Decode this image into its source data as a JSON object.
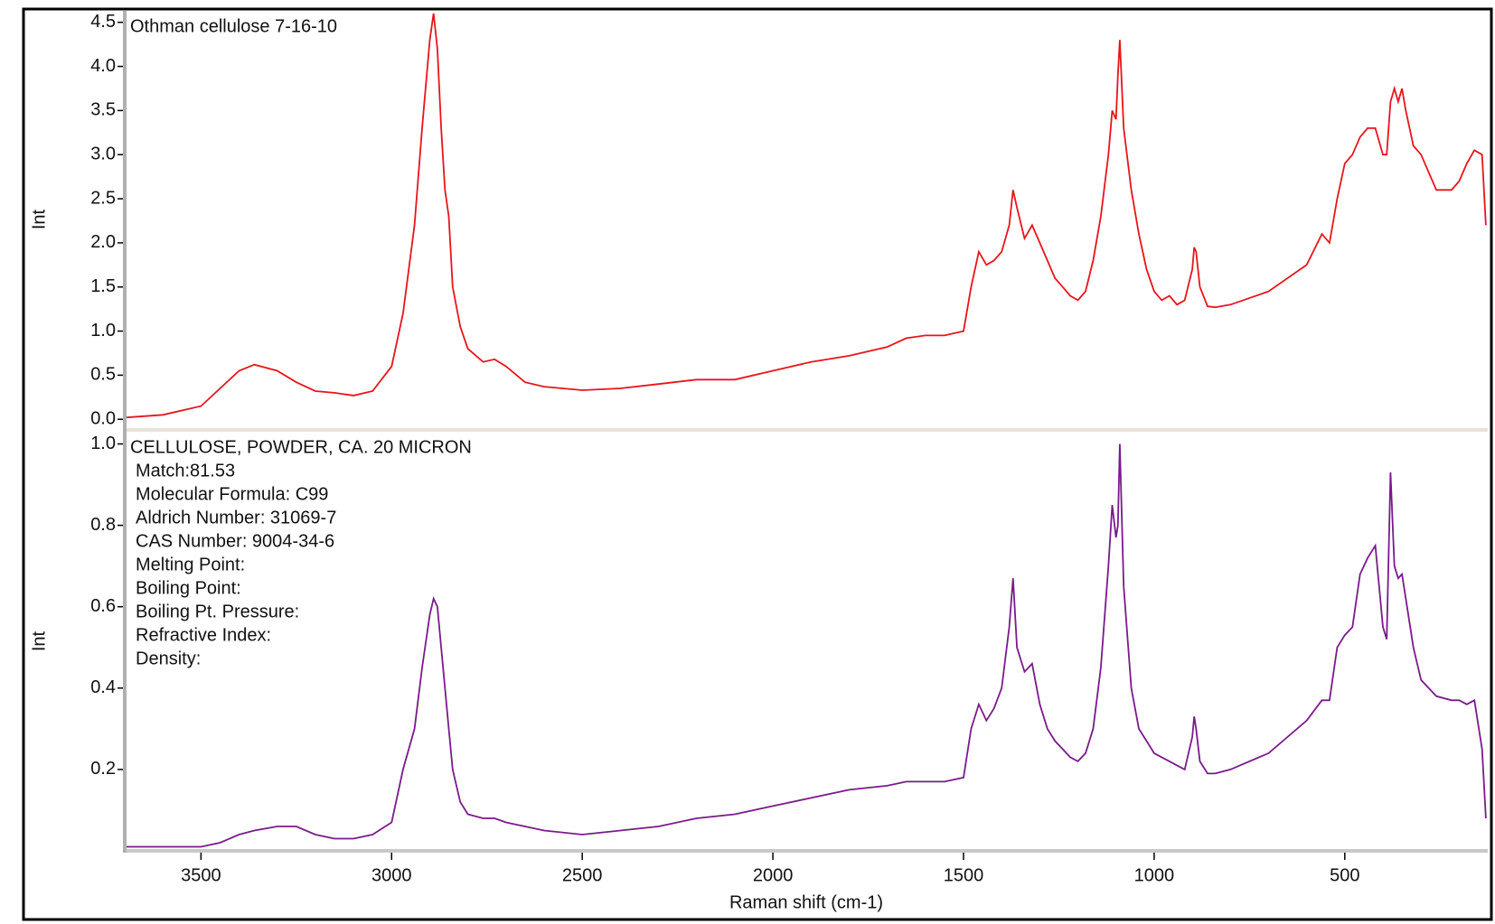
{
  "chart_data": [
    {
      "type": "line",
      "title": "Othman cellulose 7-16-10",
      "y_label": "Int",
      "xlim": [
        3700,
        125
      ],
      "ylim": [
        -0.1,
        4.63
      ],
      "yticks": [
        {
          "value": 0,
          "label": "0.0"
        },
        0.5,
        {
          "value": 1,
          "label": "1.0"
        },
        1.5,
        {
          "value": 2,
          "label": "2.0"
        },
        2.5,
        {
          "value": 3,
          "label": "3.0"
        },
        3.5,
        {
          "value": 4,
          "label": "4.0"
        },
        4.5
      ],
      "x": [
        3700,
        3600,
        3500,
        3450,
        3400,
        3360,
        3300,
        3250,
        3200,
        3150,
        3100,
        3050,
        3000,
        2970,
        2940,
        2920,
        2900,
        2890,
        2880,
        2870,
        2860,
        2850,
        2840,
        2820,
        2800,
        2760,
        2730,
        2700,
        2650,
        2600,
        2500,
        2400,
        2300,
        2200,
        2100,
        2000,
        1900,
        1800,
        1700,
        1650,
        1600,
        1550,
        1500,
        1480,
        1460,
        1440,
        1420,
        1400,
        1380,
        1370,
        1360,
        1340,
        1320,
        1300,
        1280,
        1260,
        1240,
        1220,
        1200,
        1180,
        1160,
        1140,
        1120,
        1110,
        1100,
        1095,
        1090,
        1080,
        1060,
        1040,
        1020,
        1000,
        980,
        960,
        940,
        920,
        900,
        895,
        890,
        880,
        860,
        840,
        800,
        700,
        600,
        560,
        540,
        520,
        500,
        480,
        460,
        440,
        420,
        400,
        390,
        380,
        370,
        360,
        350,
        340,
        320,
        300,
        260,
        220,
        200,
        180,
        160,
        140,
        130
      ],
      "series": [
        {
          "color": "#e8141b",
          "values": [
            0.02,
            0.05,
            0.15,
            0.35,
            0.55,
            0.62,
            0.55,
            0.42,
            0.32,
            0.3,
            0.27,
            0.32,
            0.6,
            1.2,
            2.2,
            3.3,
            4.3,
            4.6,
            4.2,
            3.3,
            2.6,
            2.3,
            1.5,
            1.05,
            0.8,
            0.65,
            0.68,
            0.6,
            0.42,
            0.37,
            0.33,
            0.35,
            0.4,
            0.45,
            0.45,
            0.55,
            0.65,
            0.72,
            0.82,
            0.92,
            0.95,
            0.95,
            1.0,
            1.5,
            1.9,
            1.75,
            1.8,
            1.9,
            2.2,
            2.6,
            2.4,
            2.05,
            2.2,
            2.0,
            1.8,
            1.6,
            1.5,
            1.4,
            1.35,
            1.45,
            1.8,
            2.3,
            3.0,
            3.5,
            3.4,
            3.9,
            4.3,
            3.3,
            2.6,
            2.1,
            1.7,
            1.45,
            1.35,
            1.4,
            1.3,
            1.35,
            1.7,
            1.95,
            1.9,
            1.5,
            1.28,
            1.27,
            1.3,
            1.45,
            1.75,
            2.1,
            2.0,
            2.5,
            2.9,
            3.0,
            3.2,
            3.3,
            3.3,
            3.0,
            3.0,
            3.6,
            3.75,
            3.6,
            3.75,
            3.5,
            3.1,
            3.0,
            2.6,
            2.6,
            2.7,
            2.9,
            3.05,
            3.0,
            2.2
          ]
        }
      ]
    },
    {
      "type": "line",
      "title": "CELLULOSE, POWDER, CA. 20 MICRON",
      "annotations": [
        "Match:81.53",
        "Molecular Formula:  C99",
        "Aldrich Number:  31069-7",
        "CAS Number:  9004-34-6",
        "Melting Point:",
        "Boiling Point:",
        "Boiling Pt. Pressure:",
        "Refractive Index:",
        "Density:"
      ],
      "y_label": "Int",
      "x_label": "Raman shift (cm-1)",
      "xlim": [
        3700,
        125
      ],
      "ylim": [
        0,
        1.03
      ],
      "xticks": [
        3500,
        3000,
        2500,
        2000,
        1500,
        1000,
        500
      ],
      "yticks": [
        0.2,
        0.4,
        0.6,
        0.8,
        {
          "value": 1,
          "label": "1.0"
        }
      ],
      "x": [
        3700,
        3600,
        3500,
        3450,
        3400,
        3360,
        3300,
        3250,
        3200,
        3150,
        3100,
        3050,
        3000,
        2970,
        2940,
        2920,
        2900,
        2890,
        2880,
        2870,
        2860,
        2850,
        2840,
        2820,
        2800,
        2760,
        2730,
        2700,
        2650,
        2600,
        2500,
        2400,
        2300,
        2200,
        2100,
        2000,
        1900,
        1800,
        1700,
        1650,
        1600,
        1550,
        1500,
        1480,
        1460,
        1440,
        1420,
        1400,
        1380,
        1370,
        1360,
        1340,
        1320,
        1300,
        1280,
        1260,
        1240,
        1220,
        1200,
        1180,
        1160,
        1140,
        1120,
        1110,
        1100,
        1095,
        1090,
        1080,
        1060,
        1040,
        1020,
        1000,
        980,
        960,
        940,
        920,
        900,
        895,
        890,
        880,
        860,
        840,
        800,
        700,
        600,
        560,
        540,
        520,
        500,
        480,
        460,
        440,
        420,
        400,
        390,
        380,
        370,
        360,
        350,
        340,
        320,
        300,
        260,
        220,
        200,
        180,
        160,
        140,
        130
      ],
      "series": [
        {
          "color": "#7a1a8c",
          "values": [
            0.01,
            0.01,
            0.01,
            0.02,
            0.04,
            0.05,
            0.06,
            0.06,
            0.04,
            0.03,
            0.03,
            0.04,
            0.07,
            0.2,
            0.3,
            0.45,
            0.58,
            0.62,
            0.6,
            0.5,
            0.4,
            0.3,
            0.2,
            0.12,
            0.09,
            0.08,
            0.08,
            0.07,
            0.06,
            0.05,
            0.04,
            0.05,
            0.06,
            0.08,
            0.09,
            0.11,
            0.13,
            0.15,
            0.16,
            0.17,
            0.17,
            0.17,
            0.18,
            0.3,
            0.36,
            0.32,
            0.35,
            0.4,
            0.55,
            0.67,
            0.5,
            0.44,
            0.46,
            0.36,
            0.3,
            0.27,
            0.25,
            0.23,
            0.22,
            0.24,
            0.3,
            0.45,
            0.7,
            0.85,
            0.77,
            0.8,
            1.0,
            0.65,
            0.4,
            0.3,
            0.27,
            0.24,
            0.23,
            0.22,
            0.21,
            0.2,
            0.28,
            0.33,
            0.3,
            0.22,
            0.19,
            0.19,
            0.2,
            0.24,
            0.32,
            0.37,
            0.37,
            0.5,
            0.53,
            0.55,
            0.68,
            0.72,
            0.75,
            0.55,
            0.52,
            0.93,
            0.7,
            0.67,
            0.68,
            0.62,
            0.5,
            0.42,
            0.38,
            0.37,
            0.37,
            0.36,
            0.37,
            0.25,
            0.08
          ]
        }
      ]
    }
  ]
}
